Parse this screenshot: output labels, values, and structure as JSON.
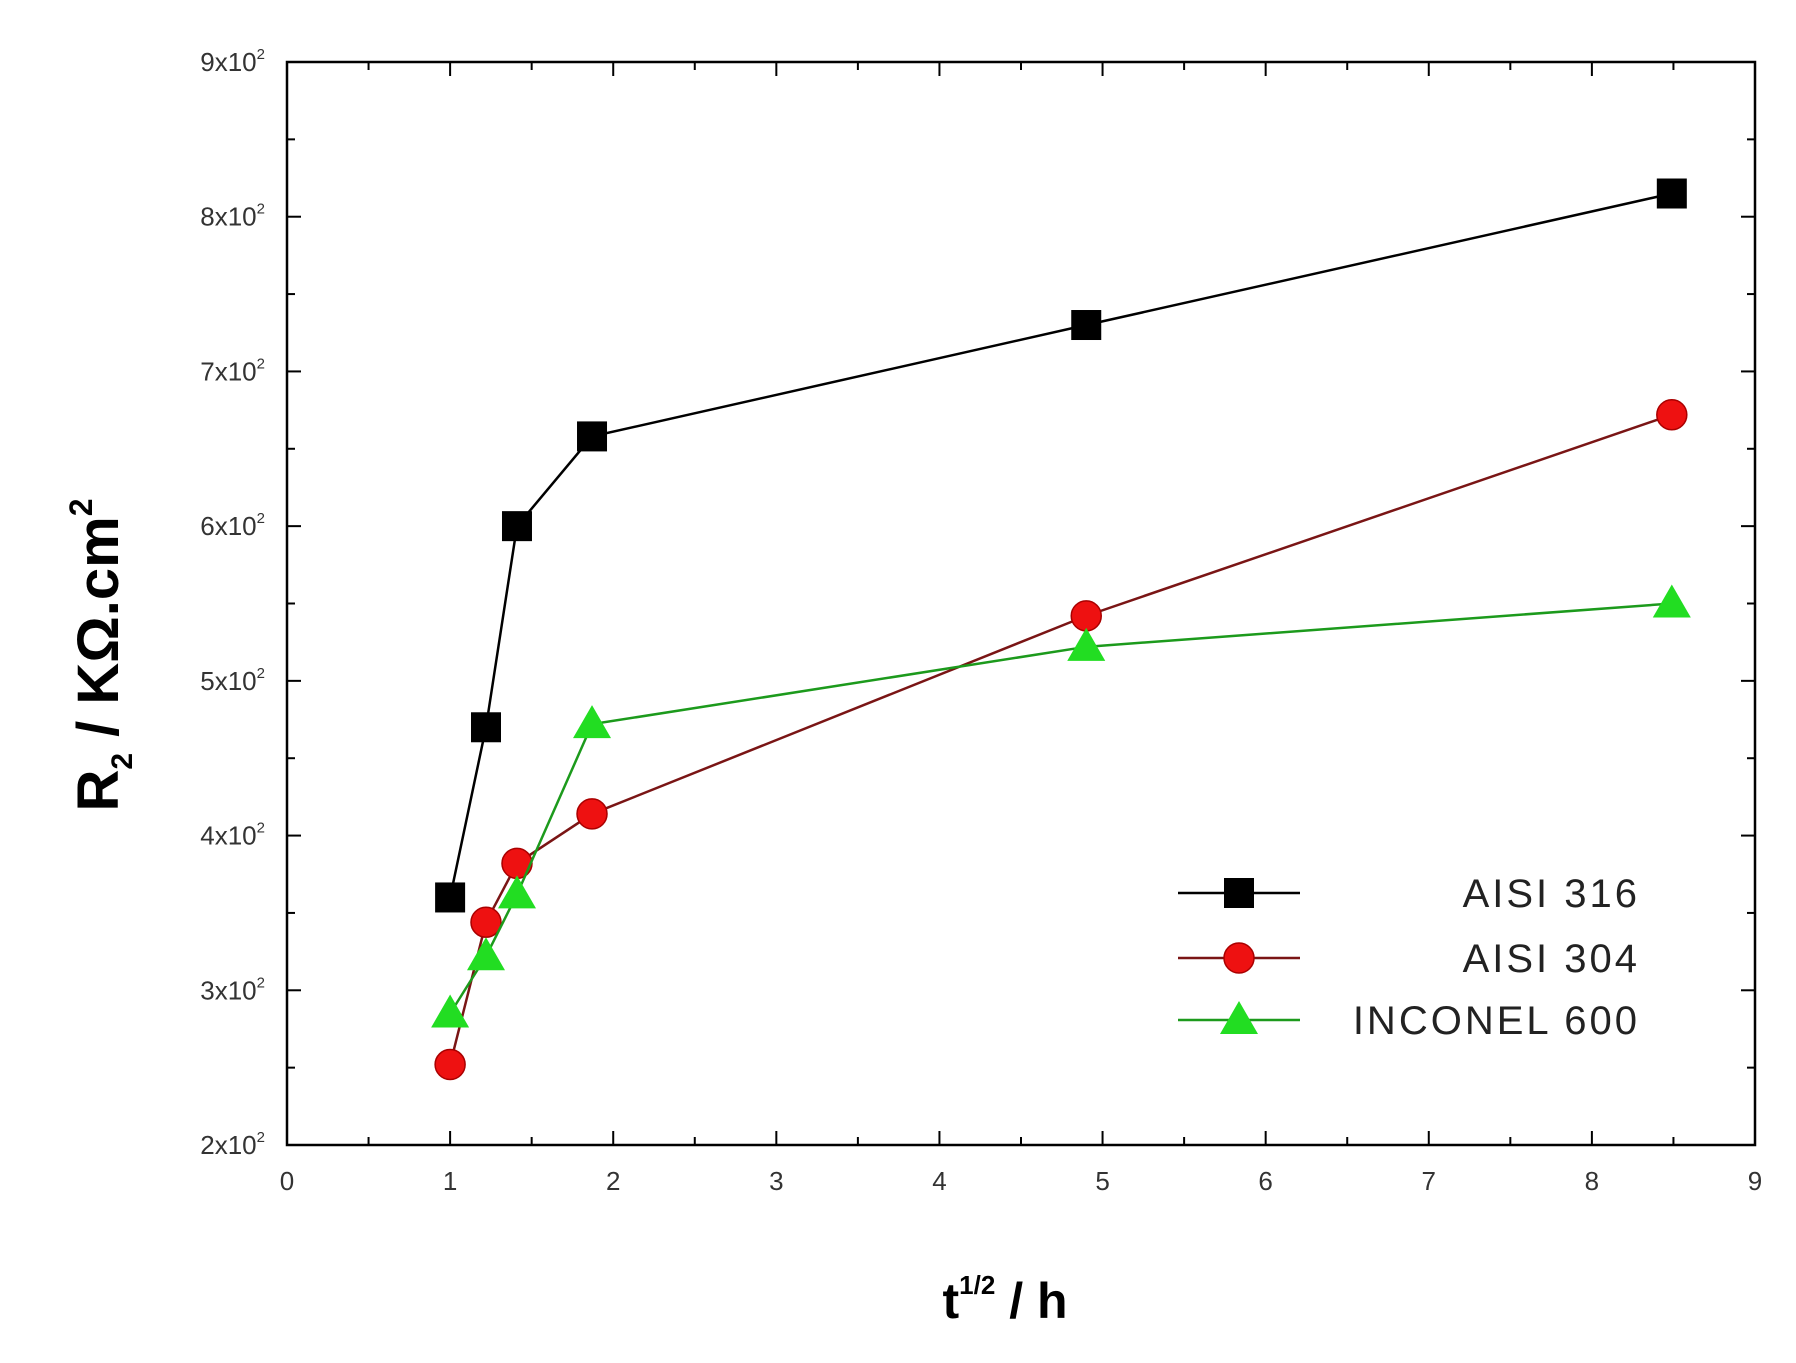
{
  "chart_data": {
    "type": "line",
    "xlabel": {
      "main": "t",
      "sup": "1/2",
      "rest": " / h"
    },
    "ylabel": {
      "main": "R",
      "sub": "2",
      "rest": " / KΩ.cm",
      "sup": "2"
    },
    "xlim": [
      0,
      9
    ],
    "ylim": [
      200,
      900
    ],
    "x_ticks": [
      "0",
      "1",
      "2",
      "3",
      "4",
      "5",
      "6",
      "7",
      "8",
      "9"
    ],
    "y_ticks": [
      {
        "mantissa": "2x10",
        "exp": "2"
      },
      {
        "mantissa": "3x10",
        "exp": "2"
      },
      {
        "mantissa": "4x10",
        "exp": "2"
      },
      {
        "mantissa": "5x10",
        "exp": "2"
      },
      {
        "mantissa": "6x10",
        "exp": "2"
      },
      {
        "mantissa": "7x10",
        "exp": "2"
      },
      {
        "mantissa": "8x10",
        "exp": "2"
      },
      {
        "mantissa": "9x10",
        "exp": "2"
      }
    ],
    "grid": false,
    "legend_position": "bottom-right",
    "series": [
      {
        "name": "AISI 316",
        "color": "#000000",
        "marker": "square",
        "x": [
          1.0,
          1.22,
          1.41,
          1.87,
          4.9,
          8.49
        ],
        "y": [
          360,
          470,
          600,
          658,
          730,
          815
        ]
      },
      {
        "name": "AISI 304",
        "color": "#ee1111",
        "line_color": "#7a1515",
        "marker": "circle",
        "x": [
          1.0,
          1.22,
          1.41,
          1.87,
          4.9,
          8.49
        ],
        "y": [
          252,
          344,
          382,
          414,
          542,
          672
        ]
      },
      {
        "name": "INCONEL 600",
        "color": "#22dd22",
        "line_color": "#1c9a1c",
        "marker": "triangle",
        "x": [
          1.0,
          1.22,
          1.41,
          1.87,
          4.9,
          8.49
        ],
        "y": [
          285,
          322,
          362,
          472,
          522,
          550
        ]
      }
    ]
  }
}
